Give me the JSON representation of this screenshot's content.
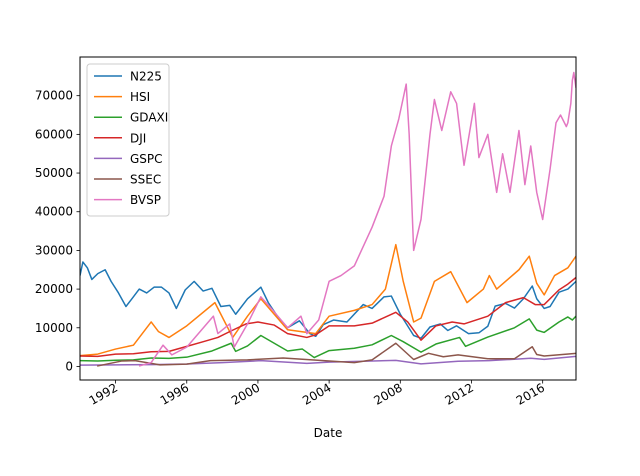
{
  "chart_data": {
    "type": "line",
    "title": "",
    "xlabel": "Date",
    "ylabel": "",
    "xlim": [
      "1990-01-01",
      "2017-11-15"
    ],
    "ylim": [
      -3500,
      80000
    ],
    "x_ticks": [
      "1992",
      "1996",
      "2000",
      "2004",
      "2008",
      "2012",
      "2016"
    ],
    "y_ticks": [
      0,
      10000,
      20000,
      30000,
      40000,
      50000,
      60000,
      70000
    ],
    "grid": false,
    "legend_position": "top-left",
    "series": [
      {
        "name": "N225",
        "color": "#1f77b4",
        "points": [
          [
            "1990-01-01",
            23500
          ],
          [
            "1990-03-01",
            27000
          ],
          [
            "1990-06-01",
            25500
          ],
          [
            "1990-09-01",
            22500
          ],
          [
            "1991-01-01",
            24000
          ],
          [
            "1991-06-01",
            25000
          ],
          [
            "1991-10-01",
            22000
          ],
          [
            "1992-03-01",
            19000
          ],
          [
            "1992-08-01",
            15500
          ],
          [
            "1992-12-01",
            17500
          ],
          [
            "1993-05-01",
            20000
          ],
          [
            "1993-10-01",
            19000
          ],
          [
            "1994-03-01",
            20500
          ],
          [
            "1994-08-01",
            20500
          ],
          [
            "1995-01-01",
            19000
          ],
          [
            "1995-06-01",
            15000
          ],
          [
            "1995-12-01",
            19800
          ],
          [
            "1996-06-01",
            22000
          ],
          [
            "1996-12-01",
            19500
          ],
          [
            "1997-06-01",
            20200
          ],
          [
            "1997-12-01",
            15500
          ],
          [
            "1998-06-01",
            15800
          ],
          [
            "1998-10-01",
            13500
          ],
          [
            "1999-06-01",
            17500
          ],
          [
            "2000-03-01",
            20500
          ],
          [
            "2000-08-01",
            16500
          ],
          [
            "2001-03-01",
            12500
          ],
          [
            "2001-09-01",
            10000
          ],
          [
            "2002-05-01",
            11800
          ],
          [
            "2002-12-01",
            8500
          ],
          [
            "2003-04-01",
            7800
          ],
          [
            "2003-09-01",
            10800
          ],
          [
            "2004-04-01",
            12000
          ],
          [
            "2005-01-01",
            11500
          ],
          [
            "2005-12-01",
            16000
          ],
          [
            "2006-06-01",
            15000
          ],
          [
            "2007-02-01",
            18000
          ],
          [
            "2007-07-01",
            18200
          ],
          [
            "2008-01-01",
            13500
          ],
          [
            "2008-10-01",
            8000
          ],
          [
            "2009-03-01",
            7300
          ],
          [
            "2009-09-01",
            10200
          ],
          [
            "2010-04-01",
            11000
          ],
          [
            "2010-09-01",
            9300
          ],
          [
            "2011-03-01",
            10500
          ],
          [
            "2011-11-01",
            8500
          ],
          [
            "2012-06-01",
            8700
          ],
          [
            "2012-12-01",
            10400
          ],
          [
            "2013-05-01",
            15600
          ],
          [
            "2013-12-01",
            16300
          ],
          [
            "2014-06-01",
            15100
          ],
          [
            "2014-12-01",
            17500
          ],
          [
            "2015-06-01",
            20800
          ],
          [
            "2015-09-01",
            17500
          ],
          [
            "2016-02-01",
            15000
          ],
          [
            "2016-06-01",
            15500
          ],
          [
            "2016-12-01",
            19200
          ],
          [
            "2017-06-01",
            20000
          ],
          [
            "2017-11-15",
            22000
          ]
        ]
      },
      {
        "name": "HSI",
        "color": "#ff7f0e",
        "points": [
          [
            "1990-01-01",
            2800
          ],
          [
            "1991-01-01",
            3200
          ],
          [
            "1992-01-01",
            4500
          ],
          [
            "1993-01-01",
            5500
          ],
          [
            "1994-01-01",
            11500
          ],
          [
            "1994-06-01",
            9000
          ],
          [
            "1995-01-01",
            7500
          ],
          [
            "1996-01-01",
            10500
          ],
          [
            "1997-08-01",
            16500
          ],
          [
            "1998-08-01",
            7500
          ],
          [
            "1999-06-01",
            13000
          ],
          [
            "2000-03-01",
            17500
          ],
          [
            "2001-09-01",
            9500
          ],
          [
            "2003-04-01",
            8500
          ],
          [
            "2004-01-01",
            13000
          ],
          [
            "2005-06-01",
            14500
          ],
          [
            "2006-06-01",
            16000
          ],
          [
            "2007-03-01",
            20000
          ],
          [
            "2007-10-01",
            31500
          ],
          [
            "2008-03-01",
            22000
          ],
          [
            "2008-10-01",
            11500
          ],
          [
            "2009-03-01",
            12500
          ],
          [
            "2009-12-01",
            22000
          ],
          [
            "2010-11-01",
            24500
          ],
          [
            "2011-10-01",
            16500
          ],
          [
            "2012-09-01",
            20000
          ],
          [
            "2013-01-01",
            23500
          ],
          [
            "2013-06-01",
            20000
          ],
          [
            "2014-09-01",
            25000
          ],
          [
            "2015-04-01",
            28500
          ],
          [
            "2015-09-01",
            21500
          ],
          [
            "2016-02-01",
            18500
          ],
          [
            "2016-09-01",
            23500
          ],
          [
            "2017-06-01",
            25500
          ],
          [
            "2017-11-15",
            28500
          ]
        ]
      },
      {
        "name": "GDAXI",
        "color": "#2ca02c",
        "points": [
          [
            "1990-01-01",
            1500
          ],
          [
            "1991-01-01",
            1400
          ],
          [
            "1992-01-01",
            1600
          ],
          [
            "1993-01-01",
            1700
          ],
          [
            "1994-01-01",
            2200
          ],
          [
            "1995-01-01",
            2100
          ],
          [
            "1996-01-01",
            2400
          ],
          [
            "1997-06-01",
            4000
          ],
          [
            "1998-07-01",
            6000
          ],
          [
            "1998-10-01",
            3900
          ],
          [
            "1999-06-01",
            5300
          ],
          [
            "2000-03-01",
            8000
          ],
          [
            "2001-09-01",
            4000
          ],
          [
            "2002-07-01",
            4500
          ],
          [
            "2003-03-01",
            2300
          ],
          [
            "2004-01-01",
            4100
          ],
          [
            "2005-06-01",
            4700
          ],
          [
            "2006-06-01",
            5600
          ],
          [
            "2007-07-01",
            8000
          ],
          [
            "2008-03-01",
            6400
          ],
          [
            "2009-03-01",
            3700
          ],
          [
            "2010-01-01",
            5800
          ],
          [
            "2011-05-01",
            7500
          ],
          [
            "2011-09-01",
            5200
          ],
          [
            "2012-12-01",
            7600
          ],
          [
            "2014-06-01",
            10000
          ],
          [
            "2015-04-01",
            12300
          ],
          [
            "2015-09-01",
            9400
          ],
          [
            "2016-02-01",
            8800
          ],
          [
            "2016-12-01",
            11500
          ],
          [
            "2017-06-01",
            12800
          ],
          [
            "2017-09-01",
            12000
          ],
          [
            "2017-11-15",
            13000
          ]
        ]
      },
      {
        "name": "DJI",
        "color": "#d62728",
        "points": [
          [
            "1990-01-01",
            2700
          ],
          [
            "1991-01-01",
            2600
          ],
          [
            "1992-01-01",
            3200
          ],
          [
            "1993-01-01",
            3300
          ],
          [
            "1994-01-01",
            3800
          ],
          [
            "1995-01-01",
            3900
          ],
          [
            "1996-01-01",
            5200
          ],
          [
            "1997-01-01",
            6500
          ],
          [
            "1997-10-01",
            7500
          ],
          [
            "1998-07-01",
            9200
          ],
          [
            "1999-05-01",
            11000
          ],
          [
            "2000-01-01",
            11500
          ],
          [
            "2000-12-01",
            10700
          ],
          [
            "2001-09-01",
            8500
          ],
          [
            "2002-10-01",
            7500
          ],
          [
            "2003-04-01",
            8200
          ],
          [
            "2004-01-01",
            10500
          ],
          [
            "2005-06-01",
            10500
          ],
          [
            "2006-06-01",
            11200
          ],
          [
            "2007-10-01",
            14000
          ],
          [
            "2008-06-01",
            11500
          ],
          [
            "2009-03-01",
            6800
          ],
          [
            "2010-01-01",
            10500
          ],
          [
            "2010-12-01",
            11500
          ],
          [
            "2011-08-01",
            11000
          ],
          [
            "2012-12-01",
            13000
          ],
          [
            "2013-12-01",
            16500
          ],
          [
            "2014-12-01",
            17800
          ],
          [
            "2015-08-01",
            16000
          ],
          [
            "2016-02-01",
            16000
          ],
          [
            "2016-12-01",
            19800
          ],
          [
            "2017-06-01",
            21300
          ],
          [
            "2017-11-15",
            23000
          ]
        ]
      },
      {
        "name": "GSPC",
        "color": "#9467bd",
        "points": [
          [
            "1990-01-01",
            330
          ],
          [
            "1992-01-01",
            410
          ],
          [
            "1994-01-01",
            470
          ],
          [
            "1996-01-01",
            620
          ],
          [
            "1998-01-01",
            980
          ],
          [
            "2000-03-01",
            1500
          ],
          [
            "2002-10-01",
            800
          ],
          [
            "2004-01-01",
            1130
          ],
          [
            "2007-10-01",
            1560
          ],
          [
            "2009-03-01",
            680
          ],
          [
            "2011-04-01",
            1360
          ],
          [
            "2013-01-01",
            1500
          ],
          [
            "2015-05-01",
            2120
          ],
          [
            "2016-02-01",
            1830
          ],
          [
            "2017-11-15",
            2600
          ]
        ]
      },
      {
        "name": "SSEC",
        "color": "#8c564b",
        "points": [
          [
            "1990-12-19",
            100
          ],
          [
            "1992-05-01",
            1400
          ],
          [
            "1993-02-01",
            1500
          ],
          [
            "1994-07-01",
            400
          ],
          [
            "1996-01-01",
            600
          ],
          [
            "1997-05-01",
            1500
          ],
          [
            "1999-06-01",
            1700
          ],
          [
            "2001-06-01",
            2200
          ],
          [
            "2005-06-01",
            1000
          ],
          [
            "2006-06-01",
            1700
          ],
          [
            "2007-10-01",
            6000
          ],
          [
            "2008-10-01",
            1800
          ],
          [
            "2009-08-01",
            3400
          ],
          [
            "2010-06-01",
            2500
          ],
          [
            "2011-04-01",
            3000
          ],
          [
            "2012-12-01",
            2000
          ],
          [
            "2014-06-01",
            2000
          ],
          [
            "2015-06-01",
            5100
          ],
          [
            "2015-09-01",
            3100
          ],
          [
            "2016-02-01",
            2700
          ],
          [
            "2017-11-15",
            3400
          ]
        ]
      },
      {
        "name": "BVSP",
        "color": "#e377c2",
        "points": [
          [
            "1993-04-27",
            100
          ],
          [
            "1994-01-01",
            1000
          ],
          [
            "1994-09-01",
            5500
          ],
          [
            "1995-03-01",
            3000
          ],
          [
            "1996-01-01",
            5000
          ],
          [
            "1997-07-01",
            13000
          ],
          [
            "1997-10-01",
            8500
          ],
          [
            "1998-06-01",
            11000
          ],
          [
            "1998-09-01",
            5000
          ],
          [
            "1999-06-01",
            11000
          ],
          [
            "2000-03-01",
            18000
          ],
          [
            "2000-10-01",
            15000
          ],
          [
            "2001-09-01",
            10000
          ],
          [
            "2002-06-01",
            13000
          ],
          [
            "2002-10-01",
            8500
          ],
          [
            "2003-06-01",
            12000
          ],
          [
            "2004-01-01",
            22000
          ],
          [
            "2004-09-01",
            23500
          ],
          [
            "2005-06-01",
            26000
          ],
          [
            "2006-06-01",
            36000
          ],
          [
            "2007-02-01",
            44000
          ],
          [
            "2007-07-01",
            57000
          ],
          [
            "2007-12-01",
            64000
          ],
          [
            "2008-05-01",
            73000
          ],
          [
            "2008-07-01",
            60000
          ],
          [
            "2008-10-01",
            30000
          ],
          [
            "2009-03-01",
            38000
          ],
          [
            "2009-09-01",
            60000
          ],
          [
            "2009-12-01",
            69000
          ],
          [
            "2010-05-01",
            61000
          ],
          [
            "2010-11-01",
            71000
          ],
          [
            "2011-03-01",
            68000
          ],
          [
            "2011-08-01",
            52000
          ],
          [
            "2012-03-01",
            68000
          ],
          [
            "2012-06-01",
            54000
          ],
          [
            "2012-12-01",
            60000
          ],
          [
            "2013-06-01",
            45000
          ],
          [
            "2013-10-01",
            55000
          ],
          [
            "2014-03-01",
            45000
          ],
          [
            "2014-09-01",
            61000
          ],
          [
            "2015-01-01",
            47000
          ],
          [
            "2015-05-01",
            57000
          ],
          [
            "2015-09-01",
            45000
          ],
          [
            "2016-01-01",
            38000
          ],
          [
            "2016-06-01",
            51000
          ],
          [
            "2016-10-01",
            63000
          ],
          [
            "2017-01-01",
            65000
          ],
          [
            "2017-05-01",
            62000
          ],
          [
            "2017-06-01",
            63000
          ],
          [
            "2017-08-01",
            68000
          ],
          [
            "2017-09-01",
            74000
          ],
          [
            "2017-10-01",
            76000
          ],
          [
            "2017-11-15",
            72000
          ]
        ]
      }
    ]
  }
}
